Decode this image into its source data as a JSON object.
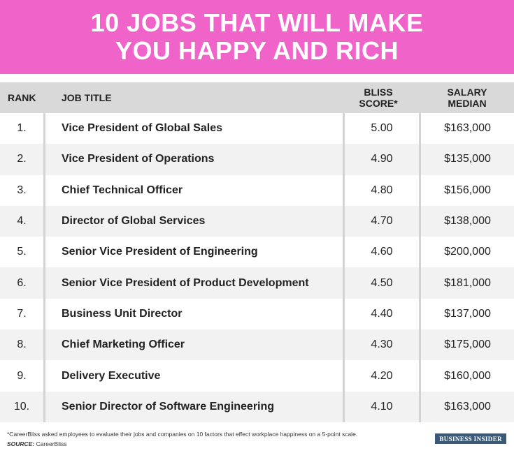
{
  "header": {
    "title_line1": "10 JOBS THAT WILL MAKE",
    "title_line2": "YOU HAPPY AND RICH"
  },
  "columns": {
    "rank": "RANK",
    "job_title": "JOB TITLE",
    "score_line1": "BLISS",
    "score_line2": "SCORE*",
    "salary_line1": "SALARY",
    "salary_line2": "MEDIAN"
  },
  "chart_data": {
    "type": "table",
    "columns": [
      "RANK",
      "JOB TITLE",
      "BLISS SCORE*",
      "SALARY MEDIAN"
    ],
    "rows": [
      {
        "rank": "1.",
        "job": "Vice President of Global Sales",
        "score": "5.00",
        "salary": "$163,000"
      },
      {
        "rank": "2.",
        "job": "Vice President of Operations",
        "score": "4.90",
        "salary": "$135,000"
      },
      {
        "rank": "3.",
        "job": "Chief Technical Officer",
        "score": "4.80",
        "salary": "$156,000"
      },
      {
        "rank": "4.",
        "job": "Director of Global Services",
        "score": "4.70",
        "salary": "$138,000"
      },
      {
        "rank": "5.",
        "job": "Senior Vice President of Engineering",
        "score": "4.60",
        "salary": "$200,000"
      },
      {
        "rank": "6.",
        "job": "Senior Vice President of Product Development",
        "score": "4.50",
        "salary": "$181,000"
      },
      {
        "rank": "7.",
        "job": "Business Unit Director",
        "score": "4.40",
        "salary": "$137,000"
      },
      {
        "rank": "8.",
        "job": "Chief Marketing Officer",
        "score": "4.30",
        "salary": "$175,000"
      },
      {
        "rank": "9.",
        "job": "Delivery Executive",
        "score": "4.20",
        "salary": "$160,000"
      },
      {
        "rank": "10.",
        "job": "Senior Director of Software Engineering",
        "score": "4.10",
        "salary": "$163,000"
      }
    ]
  },
  "footer": {
    "note": "*CareerBliss asked employees to evaluate their jobs and companies on 10 factors that effect workplace happiness on a 5-point scale.",
    "source_label": "SOURCE:",
    "source_value": " CareerBliss",
    "brand": "BUSINESS INSIDER"
  },
  "colors": {
    "header_bg": "#f063c8",
    "header_text": "#ffffff",
    "table_head_bg": "#d9d9d9",
    "row_alt_bg": "#f2f2f2",
    "brand_bg": "#3b5a7a"
  }
}
